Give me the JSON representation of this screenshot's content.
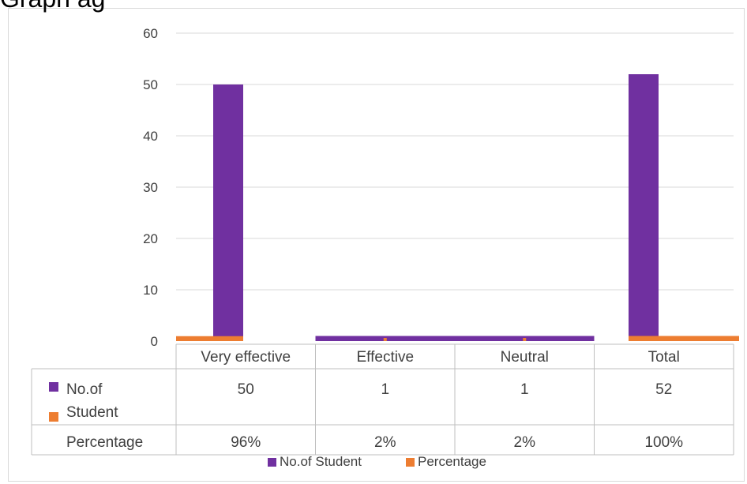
{
  "title_fragment": "Graph ag",
  "chart_data": {
    "type": "bar",
    "categories": [
      "Very effective",
      "Effective",
      "Neutral",
      "Total"
    ],
    "series": [
      {
        "name": "No.of Student",
        "color": "#7030a0",
        "values": [
          50,
          1,
          1,
          52
        ]
      },
      {
        "name": "Percentage",
        "color": "#ed7d31",
        "values": [
          0.96,
          0.02,
          0.02,
          1.0
        ]
      }
    ],
    "table_rows": [
      {
        "label_lines": [
          "No.of",
          "Student"
        ],
        "values": [
          "50",
          "1",
          "1",
          "52"
        ]
      },
      {
        "label_lines": [
          "Percentage"
        ],
        "values": [
          "96%",
          "2%",
          "2%",
          "100%"
        ]
      }
    ],
    "ylim": [
      0,
      60
    ],
    "yticks": [
      0,
      10,
      20,
      30,
      40,
      50,
      60
    ],
    "grid": true,
    "legend": {
      "position": "bottom",
      "entries": [
        "No.of Student",
        "Percentage"
      ]
    },
    "xlabel": "",
    "ylabel": ""
  }
}
